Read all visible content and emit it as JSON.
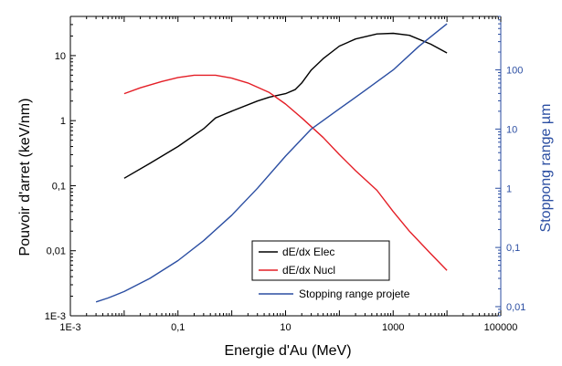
{
  "chart_data": {
    "type": "line",
    "xlabel": "Energie d'Au (MeV)",
    "ylabel": "Pouvoir d'arret (keV/nm)",
    "y2label": "Stoppong range µm",
    "x_scale": "log",
    "y_scale": "log",
    "y2_scale": "log",
    "xlim": [
      0.001,
      100000
    ],
    "ylim": [
      0.001,
      40
    ],
    "y2lim": [
      0.007,
      800
    ],
    "x_ticks": [
      {
        "v": 0.001,
        "label": "1E-3"
      },
      {
        "v": 0.1,
        "label": "0,1"
      },
      {
        "v": 10,
        "label": "10"
      },
      {
        "v": 1000,
        "label": "1000"
      },
      {
        "v": 100000,
        "label": "100000"
      }
    ],
    "y_ticks": [
      {
        "v": 0.001,
        "label": "1E-3"
      },
      {
        "v": 0.01,
        "label": "0,01"
      },
      {
        "v": 0.1,
        "label": "0,1"
      },
      {
        "v": 1,
        "label": "1"
      },
      {
        "v": 10,
        "label": "10"
      }
    ],
    "y2_ticks": [
      {
        "v": 0.01,
        "label": "0,01"
      },
      {
        "v": 0.1,
        "label": "0,1"
      },
      {
        "v": 1,
        "label": "1"
      },
      {
        "v": 10,
        "label": "10"
      },
      {
        "v": 100,
        "label": "100"
      }
    ],
    "colors": {
      "elec": "#000000",
      "nucl": "#e41e26",
      "range": "#2b4ea2",
      "right_axis": "#2b4ea2"
    },
    "legend_position": "bottom-center",
    "series": [
      {
        "name": "dE/dx Elec",
        "axis": "left",
        "color": "#000000",
        "x": [
          0.01,
          0.03,
          0.1,
          0.3,
          0.5,
          1,
          3,
          5,
          10,
          15,
          20,
          30,
          50,
          100,
          200,
          500,
          1000,
          2000,
          5000,
          10000
        ],
        "y": [
          0.13,
          0.22,
          0.4,
          0.75,
          1.1,
          1.4,
          2.0,
          2.3,
          2.6,
          3.0,
          3.8,
          6.0,
          9.0,
          14.0,
          18.0,
          21.5,
          22.0,
          20.5,
          15.0,
          11.0
        ]
      },
      {
        "name": "dE/dx Nucl",
        "axis": "left",
        "color": "#e41e26",
        "x": [
          0.01,
          0.02,
          0.05,
          0.1,
          0.2,
          0.5,
          1,
          2,
          5,
          10,
          20,
          50,
          100,
          200,
          500,
          1000,
          2000,
          5000,
          10000
        ],
        "y": [
          2.6,
          3.2,
          4.0,
          4.6,
          5.0,
          5.0,
          4.5,
          3.8,
          2.7,
          1.8,
          1.1,
          0.55,
          0.3,
          0.17,
          0.085,
          0.04,
          0.02,
          0.009,
          0.005
        ]
      },
      {
        "name": "Stopping range projete",
        "axis": "right",
        "color": "#2b4ea2",
        "x": [
          0.003,
          0.005,
          0.01,
          0.03,
          0.1,
          0.3,
          1,
          3,
          10,
          30,
          100,
          300,
          1000,
          3000,
          10000
        ],
        "y2": [
          0.012,
          0.014,
          0.018,
          0.03,
          0.06,
          0.13,
          0.35,
          1.0,
          3.5,
          10,
          22,
          45,
          100,
          250,
          600
        ]
      }
    ]
  }
}
